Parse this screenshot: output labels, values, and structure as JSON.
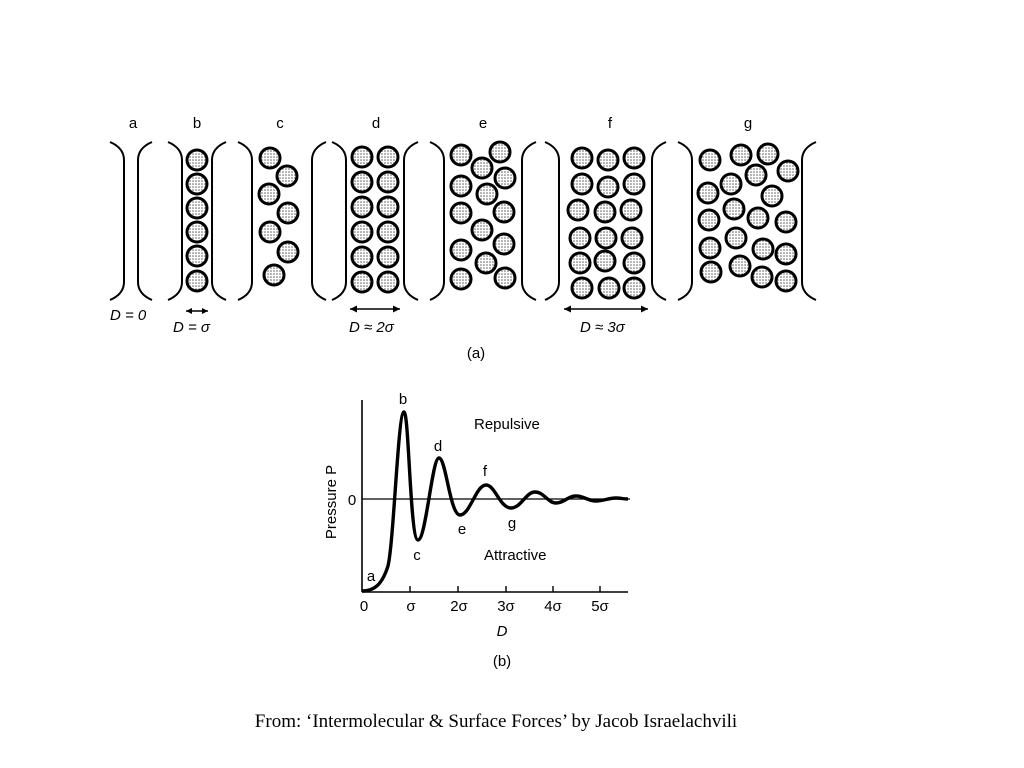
{
  "panel_a": {
    "column_labels": [
      "a",
      "b",
      "c",
      "d",
      "e",
      "f",
      "g"
    ],
    "separations": {
      "a": "D = 0",
      "b": "D = σ",
      "d": "D ≈ 2σ",
      "f": "D ≈ 3σ"
    },
    "caption": "(a)"
  },
  "panel_b": {
    "y_label": "Pressure P",
    "y_zero": "0",
    "x_label": "D",
    "x_ticks": [
      "0",
      "σ",
      "2σ",
      "3σ",
      "4σ",
      "5σ"
    ],
    "repulsive": "Repulsive",
    "attractive": "Attractive",
    "point_labels": [
      "a",
      "b",
      "c",
      "d",
      "e",
      "f",
      "g"
    ],
    "caption": "(b)"
  },
  "source": "From: ‘Intermolecular & Surface Forces’ by Jacob Israelachvili"
}
